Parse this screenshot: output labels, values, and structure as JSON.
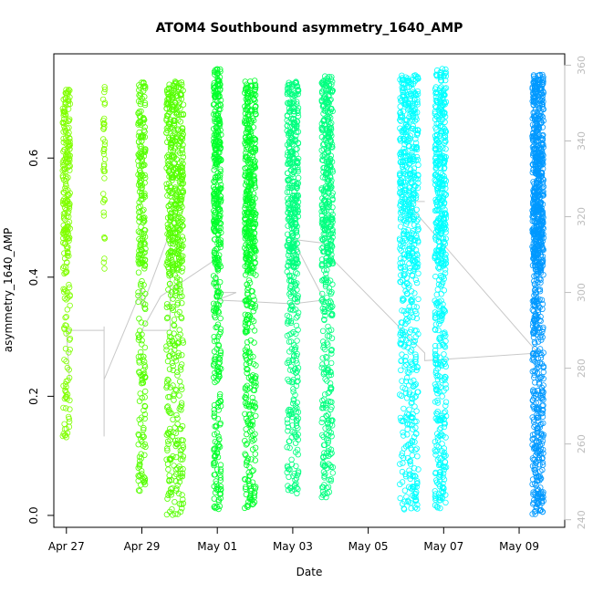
{
  "chart_data": {
    "type": "scatter",
    "title": "ATOM4 Southbound asymmetry_1640_AMP",
    "xlabel": "Date",
    "ylabel": "asymmetry_1640_AMP",
    "x_ticks": [
      "Apr 27",
      "Apr 29",
      "May 01",
      "May 03",
      "May 05",
      "May 07",
      "May 09"
    ],
    "y_ticks": [
      "0.0",
      "0.2",
      "0.4",
      "0.6"
    ],
    "y2_ticks": [
      "240",
      "260",
      "280",
      "300",
      "320",
      "340",
      "360"
    ],
    "xlim": [
      "Apr 26 16:00",
      "May 10 05:00"
    ],
    "ylim": [
      -0.02,
      0.775
    ],
    "y2lim": [
      238,
      363
    ],
    "grid": false,
    "marker": "open-circle",
    "colors": {
      "series_1": "#80ff00",
      "series_2": "#55ff00",
      "series_3": "#00ff2a",
      "series_4": "#00ff7f",
      "series_5": "#00ffff",
      "series_6": "#0099ff",
      "secondary_line": "#c8c8c8"
    },
    "clusters": [
      {
        "date": "Apr 27 00:00",
        "spread_days": 0.2,
        "ymin": 0.13,
        "ymax": 0.72,
        "color": "#80ff00",
        "count": 260
      },
      {
        "date": "Apr 28 00:00",
        "spread_days": 0.05,
        "ymin": 0.4,
        "ymax": 0.72,
        "color": "#80ff00",
        "count": 40
      },
      {
        "date": "Apr 29 00:00",
        "spread_days": 0.2,
        "ymin": 0.04,
        "ymax": 0.73,
        "color": "#55ff00",
        "count": 280
      },
      {
        "date": "Apr 29 21:00",
        "spread_days": 0.45,
        "ymin": 0.0,
        "ymax": 0.73,
        "color": "#55ff00",
        "count": 600
      },
      {
        "date": "May 01 00:00",
        "spread_days": 0.2,
        "ymin": 0.01,
        "ymax": 0.75,
        "color": "#00ff2a",
        "count": 450
      },
      {
        "date": "May 01 21:00",
        "spread_days": 0.3,
        "ymin": 0.01,
        "ymax": 0.73,
        "color": "#00ff2a",
        "count": 550
      },
      {
        "date": "May 03 00:00",
        "spread_days": 0.3,
        "ymin": 0.03,
        "ymax": 0.73,
        "color": "#00ff7f",
        "count": 500
      },
      {
        "date": "May 03 22:00",
        "spread_days": 0.3,
        "ymin": 0.03,
        "ymax": 0.74,
        "color": "#00ff7f",
        "count": 500
      },
      {
        "date": "May 06 02:00",
        "spread_days": 0.5,
        "ymin": 0.01,
        "ymax": 0.74,
        "color": "#00ffff",
        "count": 650
      },
      {
        "date": "May 06 22:00",
        "spread_days": 0.3,
        "ymin": 0.01,
        "ymax": 0.75,
        "color": "#00ffff",
        "count": 550
      },
      {
        "date": "May 09 12:00",
        "spread_days": 0.3,
        "ymin": 0.0,
        "ymax": 0.74,
        "color": "#0099ff",
        "count": 900
      }
    ],
    "secondary_series": [
      [
        "Apr 27 02:00",
        277
      ],
      [
        "Apr 27 00:00",
        290
      ],
      [
        "Apr 28 00:00",
        290
      ],
      [
        "Apr 28 00:00",
        291
      ],
      [
        "Apr 28 00:00",
        262
      ],
      [
        "Apr 28 00:00",
        277
      ],
      [
        "Apr 29 00:00",
        301
      ],
      [
        "Apr 29 00:00",
        296
      ],
      [
        "Apr 29 18:00",
        316
      ],
      [
        "Apr 29 18:00",
        290
      ],
      [
        "Apr 29 00:00",
        290
      ],
      [
        "Apr 29 12:00",
        299
      ],
      [
        "May 01 00:00",
        309
      ],
      [
        "May 01 00:00",
        300
      ],
      [
        "May 01 12:00",
        300
      ],
      [
        "May 01 00:00",
        298
      ],
      [
        "May 03 00:00",
        297
      ],
      [
        "May 03 20:00",
        298
      ],
      [
        "May 03 00:00",
        314
      ],
      [
        "May 03 20:00",
        313
      ],
      [
        "May 03 20:00",
        311
      ],
      [
        "May 06 12:00",
        284
      ],
      [
        "May 06 12:00",
        282
      ],
      [
        "May 09 12:00",
        284
      ],
      [
        "May 06 00:00",
        324
      ],
      [
        "May 06 12:00",
        324
      ]
    ]
  }
}
